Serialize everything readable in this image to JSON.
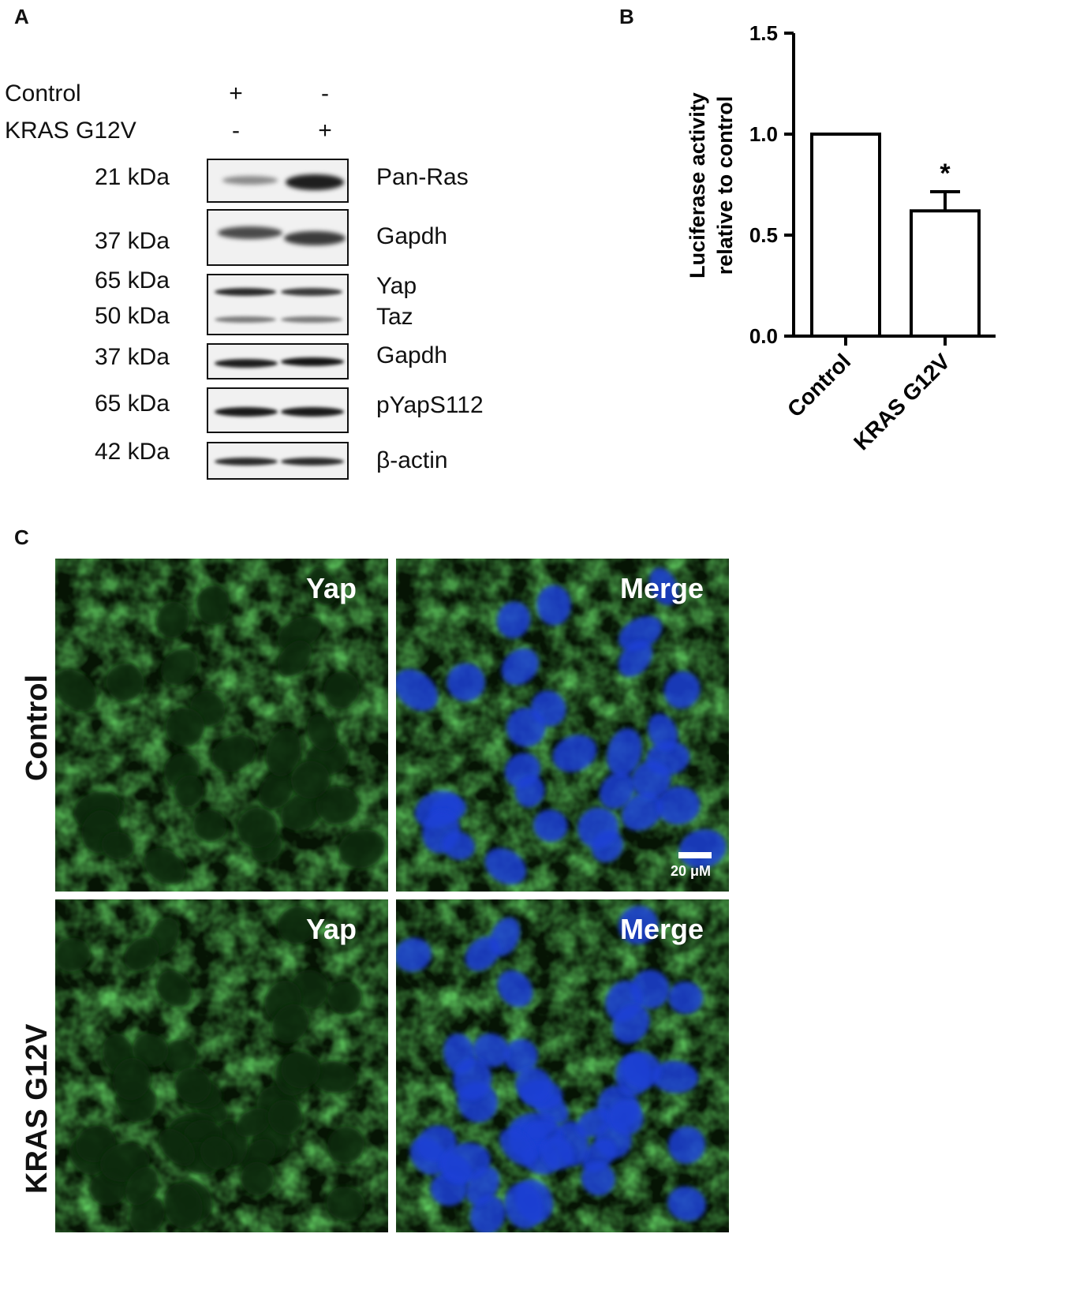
{
  "panel_a": {
    "label": "A",
    "conditions": [
      {
        "name": "Control",
        "lane1": "+",
        "lane2": "-"
      },
      {
        "name": "KRAS G12V",
        "lane1": "-",
        "lane2": "+"
      }
    ],
    "blots": [
      {
        "mw": "21 kDa",
        "protein": "Pan-Ras"
      },
      {
        "mw": "37 kDa",
        "protein": "Gapdh"
      },
      {
        "mw": "65 kDa",
        "protein": "Yap",
        "mw2": "50 kDa",
        "protein2": "Taz"
      },
      {
        "mw": "37 kDa",
        "protein": "Gapdh"
      },
      {
        "mw": "65 kDa",
        "protein": "pYapS112"
      },
      {
        "mw": "42 kDa",
        "protein": "β-actin"
      }
    ]
  },
  "panel_b": {
    "label": "B"
  },
  "panel_c": {
    "label": "C",
    "rows": [
      "Control",
      "KRAS G12V"
    ],
    "channels": [
      "Yap",
      "Merge"
    ],
    "scale_bar": "20 μM",
    "colors": {
      "yap": "#2fa82a",
      "nuclei": "#1a3fd6",
      "background": "#061404"
    }
  },
  "chart_data": {
    "type": "bar",
    "categories": [
      "Control",
      "KRAS G12V"
    ],
    "values": [
      1.0,
      0.62
    ],
    "errors": [
      0,
      0.095
    ],
    "significance": [
      "",
      "*"
    ],
    "ylabel_line1": "Luciferase activity",
    "ylabel_line2": "relative to control",
    "ylim": [
      0,
      1.5
    ],
    "yticks": [
      "0.0",
      "0.5",
      "1.0",
      "1.5"
    ],
    "bar_fill": "#ffffff",
    "bar_stroke": "#000000"
  }
}
